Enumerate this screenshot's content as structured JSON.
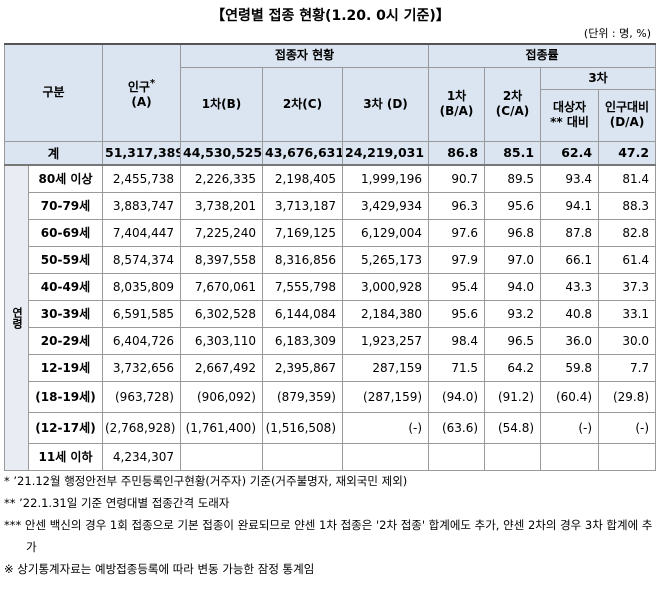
{
  "title": "【연령별 접종 현황(1.20. 0시 기준)】",
  "unit": "(단위 : 명, %)",
  "header": {
    "group": "구분",
    "population": {
      "label": "인구",
      "note": "*",
      "sub": "(A)"
    },
    "vaccinated": {
      "label": "접종자 현황",
      "cols": [
        "1차(B)",
        "2차(C)",
        "3차 (D)"
      ]
    },
    "rate": {
      "label": "접종률",
      "cols": [
        {
          "label": "1차",
          "sub": "(B/A)"
        },
        {
          "label": "2차",
          "sub": "(C/A)"
        }
      ],
      "third": {
        "label": "3차",
        "cols": [
          {
            "label": "대상자",
            "sub": "** 대비"
          },
          {
            "label": "인구대비",
            "sub": "(D/A)"
          }
        ]
      }
    }
  },
  "side_label": "연령",
  "total": {
    "label": "계",
    "values": [
      "51,317,389",
      "44,530,525",
      "43,676,631",
      "24,219,031",
      "86.8",
      "85.1",
      "62.4",
      "47.2"
    ]
  },
  "rows": [
    {
      "label": "80세 이상",
      "values": [
        "2,455,738",
        "2,226,335",
        "2,198,405",
        "1,999,196",
        "90.7",
        "89.5",
        "93.4",
        "81.4"
      ]
    },
    {
      "label": "70-79세",
      "values": [
        "3,883,747",
        "3,738,201",
        "3,713,187",
        "3,429,934",
        "96.3",
        "95.6",
        "94.1",
        "88.3"
      ]
    },
    {
      "label": "60-69세",
      "values": [
        "7,404,447",
        "7,225,240",
        "7,169,125",
        "6,129,004",
        "97.6",
        "96.8",
        "87.8",
        "82.8"
      ]
    },
    {
      "label": "50-59세",
      "values": [
        "8,574,374",
        "8,397,558",
        "8,316,856",
        "5,265,173",
        "97.9",
        "97.0",
        "66.1",
        "61.4"
      ]
    },
    {
      "label": "40-49세",
      "values": [
        "8,035,809",
        "7,670,061",
        "7,555,798",
        "3,000,928",
        "95.4",
        "94.0",
        "43.3",
        "37.3"
      ]
    },
    {
      "label": "30-39세",
      "values": [
        "6,591,585",
        "6,302,528",
        "6,144,084",
        "2,184,380",
        "95.6",
        "93.2",
        "40.8",
        "33.1"
      ]
    },
    {
      "label": "20-29세",
      "values": [
        "6,404,726",
        "6,303,110",
        "6,183,309",
        "1,923,257",
        "98.4",
        "96.5",
        "36.0",
        "30.0"
      ]
    },
    {
      "label": "12-19세",
      "values": [
        "3,732,656",
        "2,667,492",
        "2,395,867",
        "287,159",
        "71.5",
        "64.2",
        "59.8",
        "7.7"
      ]
    },
    {
      "label": "(18-19세)",
      "values": [
        "(963,728)",
        "(906,092)",
        "(879,359)",
        "(287,159)",
        "(94.0)",
        "(91.2)",
        "(60.4)",
        "(29.8)"
      ]
    },
    {
      "label": "(12-17세)",
      "values": [
        "(2,768,928)",
        "(1,761,400)",
        "(1,516,508)",
        "(-)",
        "(63.6)",
        "(54.8)",
        "(-)",
        "(-)"
      ]
    },
    {
      "label": "11세 이하",
      "values": [
        "4,234,307"
      ]
    }
  ],
  "footnotes": [
    "* ’21.12월 행정안전부 주민등록인구현황(거주자) 기준(거주불명자, 재외국민 제외)",
    "** ’22.1.31일 기준 연령대별 접종간격 도래자",
    "*** 안센 백신의 경우 1회 접종으로 기본 접종이 완료되므로 얀센 1차 접종은 '2차 접종' 합계에도 추가, 얀센 2차의 경우 3차 합계에 추가",
    "※ 상기통계자료는 예방접종등록에 따라 변동 가능한 잠정 통계임"
  ]
}
